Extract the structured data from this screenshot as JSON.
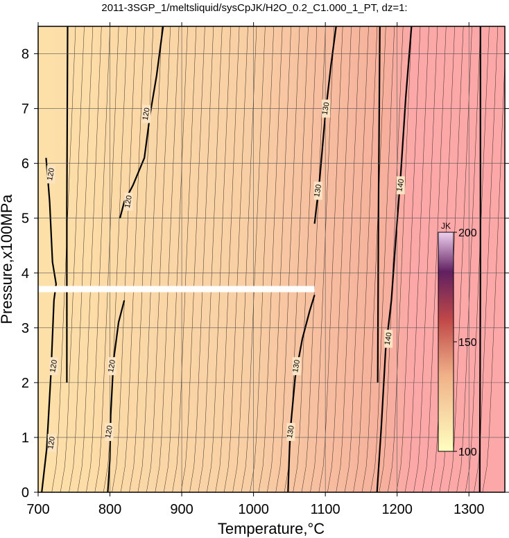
{
  "chart_data": {
    "type": "heatmap",
    "title": "2011-3SGP_1/meltsliquid/sysCpJK/H2O_0.2_C1.000_1_PT, dz=1:",
    "xlabel": "Temperature,°C",
    "ylabel": "Pressure,x100MPa",
    "xlim": [
      700,
      1350
    ],
    "ylim": [
      0,
      8.5
    ],
    "xticks": [
      700,
      800,
      900,
      1000,
      1100,
      1200,
      1300
    ],
    "yticks": [
      0,
      1,
      2,
      3,
      4,
      5,
      6,
      7,
      8
    ],
    "grid": true,
    "colorbar": {
      "unit": "JK",
      "min": 100,
      "max": 200,
      "ticks": [
        100,
        150,
        200
      ],
      "colors": [
        "#ffffc0",
        "#f0b088",
        "#c04848",
        "#602060",
        "#f0d0f0"
      ]
    },
    "field_colors": {
      "low": "#fde0a8",
      "mid": "#f8c8a0",
      "high": "#fca8a8"
    },
    "contour_labels": [
      {
        "text": "120",
        "x": 719,
        "y": 0.9
      },
      {
        "text": "120",
        "x": 722,
        "y": 2.3
      },
      {
        "text": "120",
        "x": 718,
        "y": 5.8
      },
      {
        "text": "120",
        "x": 799,
        "y": 1.1
      },
      {
        "text": "120",
        "x": 803,
        "y": 2.3
      },
      {
        "text": "120",
        "x": 826,
        "y": 5.3
      },
      {
        "text": "120",
        "x": 851,
        "y": 6.9
      },
      {
        "text": "130",
        "x": 1052,
        "y": 1.1
      },
      {
        "text": "130",
        "x": 1060,
        "y": 2.3
      },
      {
        "text": "130",
        "x": 1090,
        "y": 5.5
      },
      {
        "text": "130",
        "x": 1101,
        "y": 7.0
      },
      {
        "text": "140",
        "x": 1188,
        "y": 2.8
      },
      {
        "text": "140",
        "x": 1205,
        "y": 5.6
      }
    ],
    "gap_band": {
      "pressure": 3.7,
      "x_from": 700,
      "x_to": 1085
    }
  }
}
